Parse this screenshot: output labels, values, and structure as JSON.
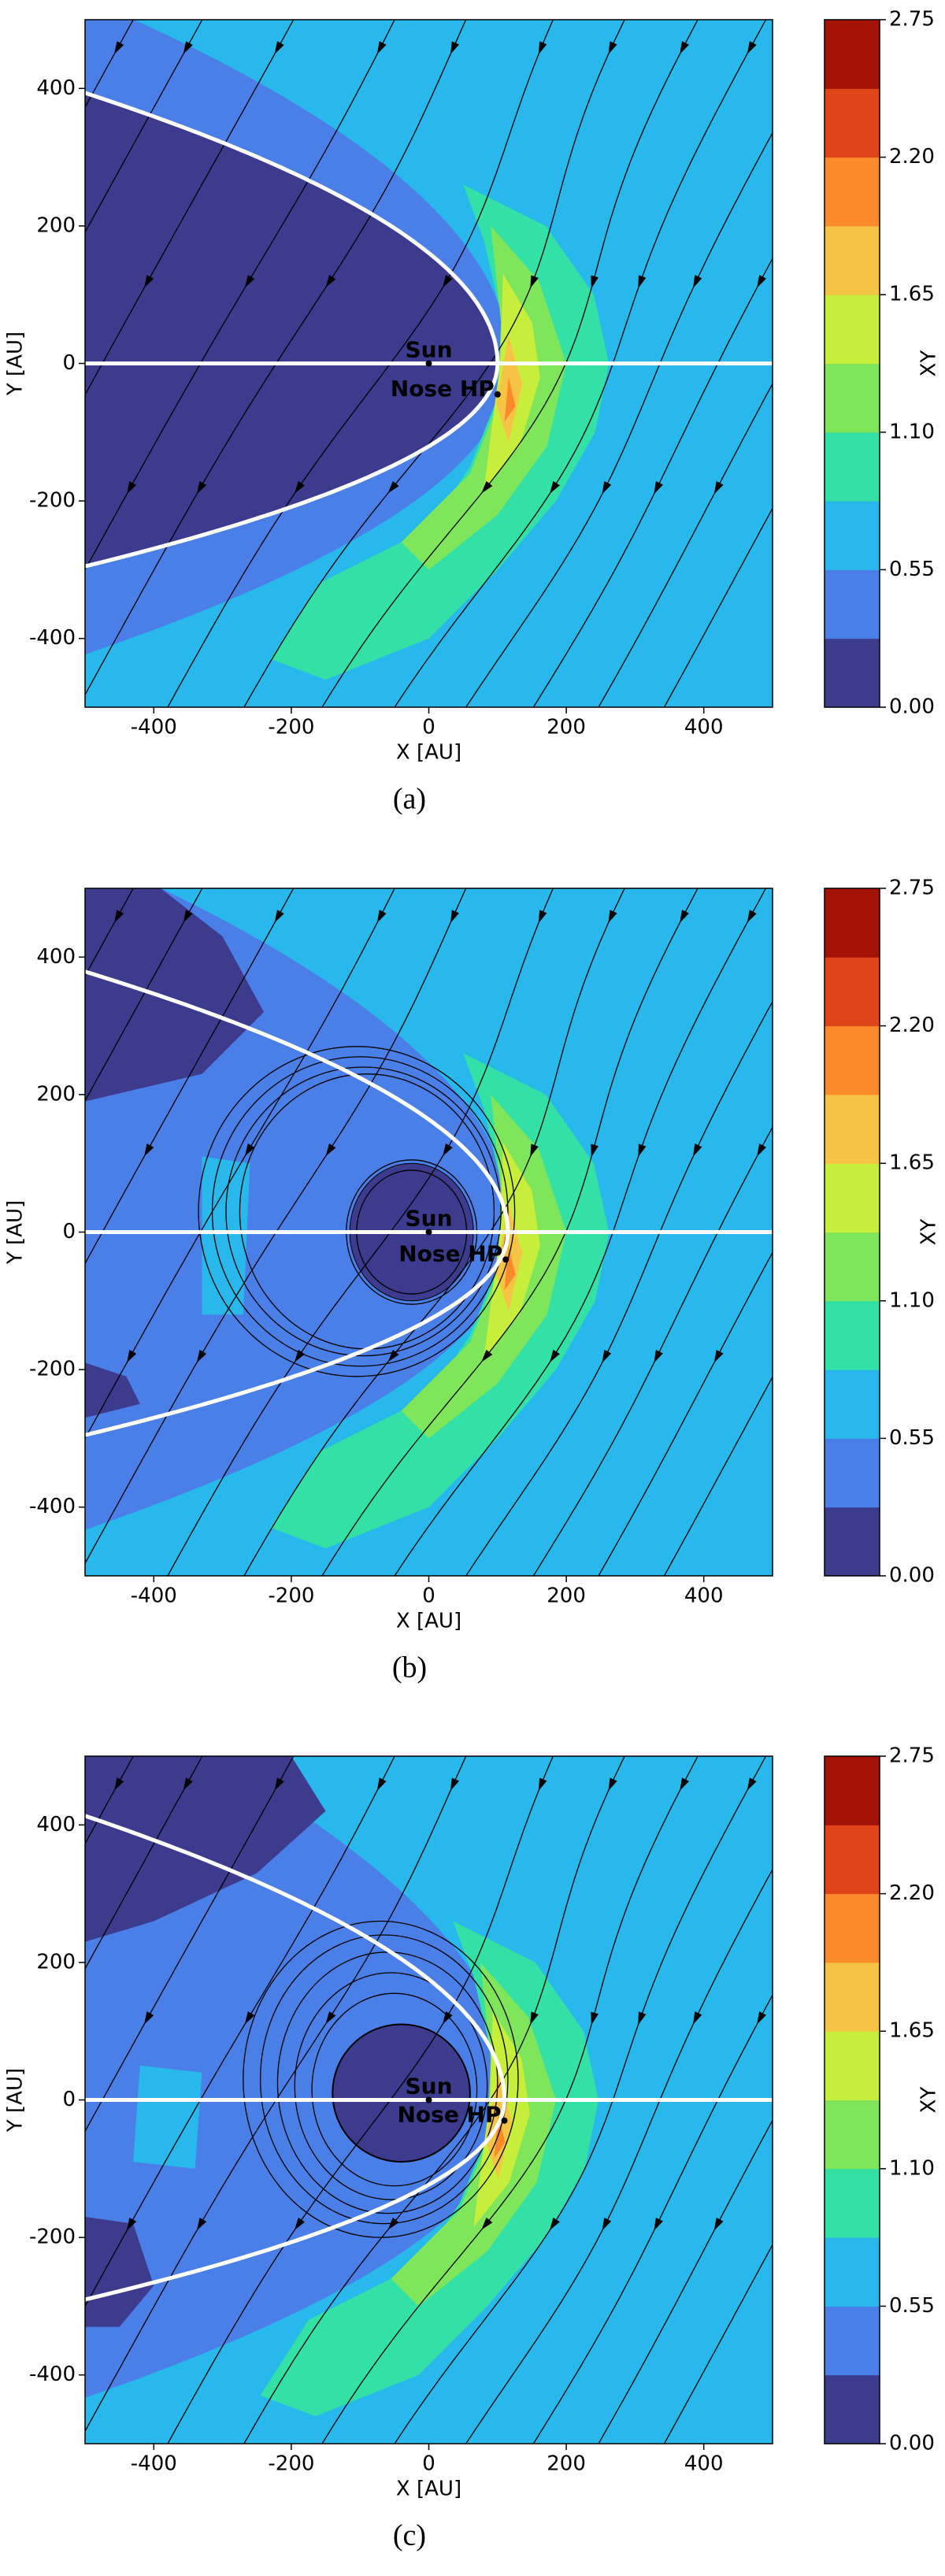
{
  "chart_data": [
    {
      "type": "contour",
      "caption": "(a)",
      "xlabel": "X [AU]",
      "ylabel": "Y [AU]",
      "xlim": [
        -500,
        500
      ],
      "ylim": [
        -500,
        500
      ],
      "xticks": [
        -400,
        -200,
        0,
        200,
        400
      ],
      "yticks": [
        -400,
        -200,
        0,
        200,
        400
      ],
      "annotations": [
        "Sun",
        "Nose HP"
      ],
      "colorbar": {
        "label": "XY",
        "levels": [
          0,
          0.275,
          0.55,
          0.825,
          1.1,
          1.375,
          1.65,
          1.925,
          2.2,
          2.475,
          2.75
        ],
        "colors": [
          "#3d3b8e",
          "#4a7fe8",
          "#29b8ec",
          "#33e0a6",
          "#7fe65c",
          "#c8ee3c",
          "#f6c445",
          "#fb8a2a",
          "#e04419",
          "#a21205"
        ],
        "ticks": [
          {
            "value": 0,
            "label": "0.00"
          },
          {
            "value": 0.55,
            "label": "0.55"
          },
          {
            "value": 1.1,
            "label": "1.10"
          },
          {
            "value": 1.65,
            "label": "1.65"
          },
          {
            "value": 2.2,
            "label": "2.20"
          },
          {
            "value": 2.75,
            "label": "2.75"
          }
        ]
      }
    },
    {
      "type": "contour",
      "caption": "(b)",
      "xlabel": "X [AU]",
      "ylabel": "Y [AU]",
      "xlim": [
        -500,
        500
      ],
      "ylim": [
        -500,
        500
      ],
      "xticks": [
        -400,
        -200,
        0,
        200,
        400
      ],
      "yticks": [
        -400,
        -200,
        0,
        200,
        400
      ],
      "annotations": [
        "Sun",
        "Nose HP"
      ],
      "colorbar": {
        "label": "XY",
        "levels": [
          0,
          0.275,
          0.55,
          0.825,
          1.1,
          1.375,
          1.65,
          1.925,
          2.2,
          2.475,
          2.75
        ],
        "colors": [
          "#3d3b8e",
          "#4a7fe8",
          "#29b8ec",
          "#33e0a6",
          "#7fe65c",
          "#c8ee3c",
          "#f6c445",
          "#fb8a2a",
          "#e04419",
          "#a21205"
        ],
        "ticks": [
          {
            "value": 0,
            "label": "0.00"
          },
          {
            "value": 0.55,
            "label": "0.55"
          },
          {
            "value": 1.1,
            "label": "1.10"
          },
          {
            "value": 1.65,
            "label": "1.65"
          },
          {
            "value": 2.2,
            "label": "2.20"
          },
          {
            "value": 2.75,
            "label": "2.75"
          }
        ]
      }
    },
    {
      "type": "contour",
      "caption": "(c)",
      "xlabel": "X [AU]",
      "ylabel": "Y [AU]",
      "xlim": [
        -500,
        500
      ],
      "ylim": [
        -500,
        500
      ],
      "xticks": [
        -400,
        -200,
        0,
        200,
        400
      ],
      "yticks": [
        -400,
        -200,
        0,
        200,
        400
      ],
      "annotations": [
        "Sun",
        "Nose HP"
      ],
      "colorbar": {
        "label": "XY",
        "levels": [
          0,
          0.275,
          0.55,
          0.825,
          1.1,
          1.375,
          1.65,
          1.925,
          2.2,
          2.475,
          2.75
        ],
        "colors": [
          "#3d3b8e",
          "#4a7fe8",
          "#29b8ec",
          "#33e0a6",
          "#7fe65c",
          "#c8ee3c",
          "#f6c445",
          "#fb8a2a",
          "#e04419",
          "#a21205"
        ],
        "ticks": [
          {
            "value": 0,
            "label": "0.00"
          },
          {
            "value": 0.55,
            "label": "0.55"
          },
          {
            "value": 1.1,
            "label": "1.10"
          },
          {
            "value": 1.65,
            "label": "1.65"
          },
          {
            "value": 2.2,
            "label": "2.20"
          },
          {
            "value": 2.75,
            "label": "2.75"
          }
        ]
      }
    }
  ]
}
